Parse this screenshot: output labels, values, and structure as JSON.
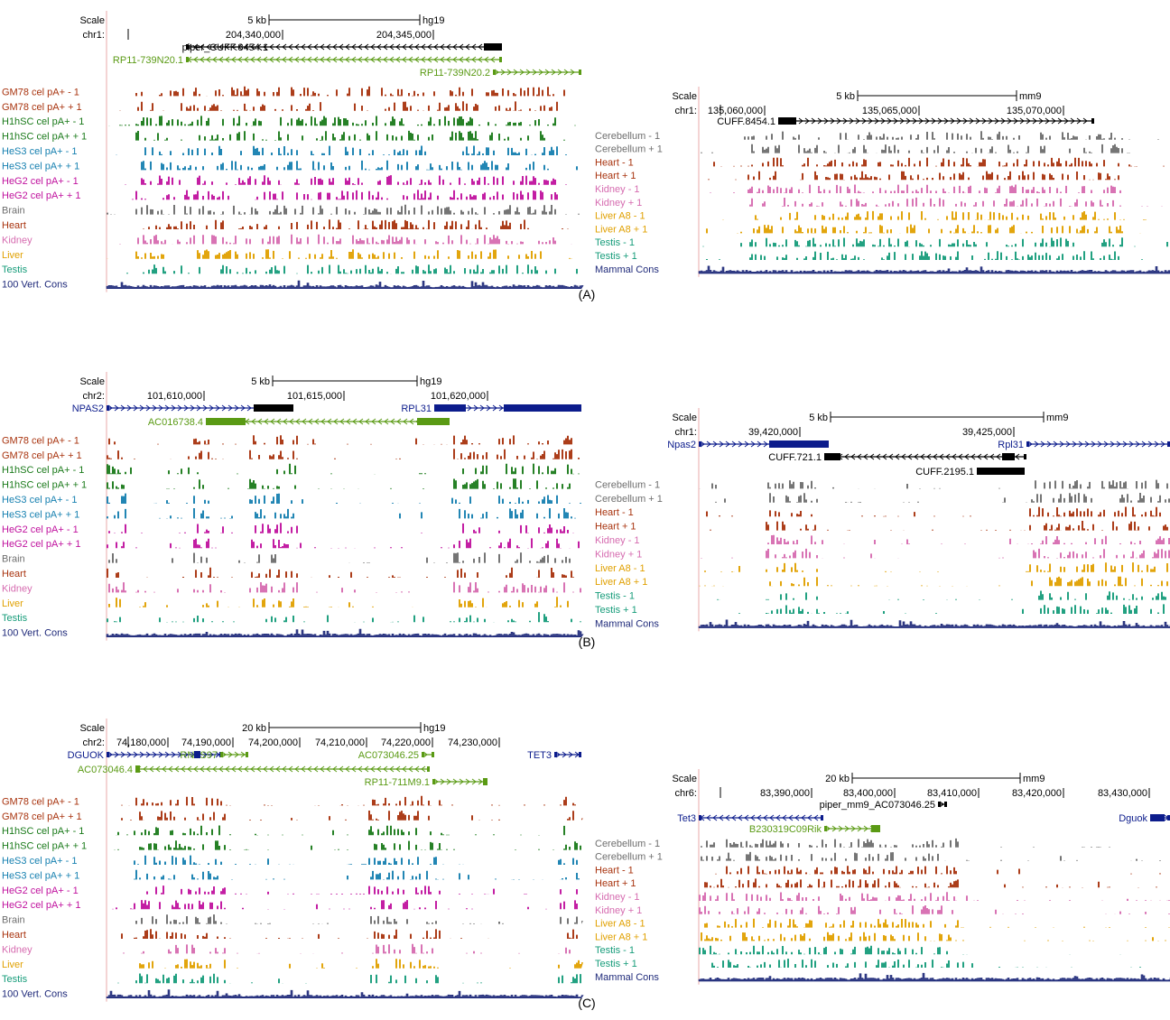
{
  "panels": [
    {
      "caption": "(A)",
      "human": {
        "scale_label": "Scale",
        "chrom_label": "chr1:",
        "scale_bar": "5 kb",
        "assembly": "hg19",
        "ticks": [
          "204,340,000",
          "204,345,000"
        ],
        "genes": [
          {
            "name": "piper_CUFF.8454.1",
            "color": "#000000",
            "dir": "-"
          },
          {
            "name": "RP11-739N20.1",
            "color": "#5a9a14",
            "dir": "-"
          },
          {
            "name": "RP11-739N20.2",
            "color": "#5a9a14",
            "dir": "+"
          }
        ],
        "tracks": [
          {
            "name": "GM78 cel pA+ - 1",
            "color": "#a8330e"
          },
          {
            "name": "GM78 cel pA+ + 1",
            "color": "#a8330e"
          },
          {
            "name": "H1hSC cel pA+ - 1",
            "color": "#1a7a1a"
          },
          {
            "name": "H1hSC cel pA+ + 1",
            "color": "#1a7a1a"
          },
          {
            "name": "HeS3 cel pA+ - 1",
            "color": "#1680b0"
          },
          {
            "name": "HeS3 cel pA+ + 1",
            "color": "#1680b0"
          },
          {
            "name": "HeG2 cel pA+ - 1",
            "color": "#c0129e"
          },
          {
            "name": "HeG2 cel pA+ + 1",
            "color": "#c0129e"
          },
          {
            "name": "Brain",
            "color": "#6e6e6e"
          },
          {
            "name": "Heart",
            "color": "#a8330e"
          },
          {
            "name": "Kidney",
            "color": "#d66cb0"
          },
          {
            "name": "Liver",
            "color": "#e0a000"
          },
          {
            "name": "Testis",
            "color": "#169c7a"
          },
          {
            "name": "100 Vert. Cons",
            "color": "#1f2a7a"
          }
        ]
      },
      "mouse": {
        "scale_label": "Scale",
        "chrom_label": "chr1:",
        "scale_bar": "5 kb",
        "assembly": "mm9",
        "ticks": [
          "135,060,000",
          "135,065,000",
          "135,070,000"
        ],
        "genes": [
          {
            "name": "CUFF.8454.1",
            "color": "#000000",
            "dir": "+"
          }
        ],
        "tracks": [
          {
            "name": "Cerebellum - 1",
            "color": "#6e6e6e"
          },
          {
            "name": "Cerebellum + 1",
            "color": "#6e6e6e"
          },
          {
            "name": "Heart - 1",
            "color": "#a8330e"
          },
          {
            "name": "Heart + 1",
            "color": "#a8330e"
          },
          {
            "name": "Kidney - 1",
            "color": "#d66cb0"
          },
          {
            "name": "Kidney + 1",
            "color": "#d66cb0"
          },
          {
            "name": "Liver A8 - 1",
            "color": "#e0a000"
          },
          {
            "name": "Liver A8 + 1",
            "color": "#e0a000"
          },
          {
            "name": "Testis - 1",
            "color": "#169c7a"
          },
          {
            "name": "Testis + 1",
            "color": "#169c7a"
          },
          {
            "name": "Mammal Cons",
            "color": "#1f2a7a"
          }
        ]
      }
    },
    {
      "caption": "(B)",
      "human": {
        "scale_label": "Scale",
        "chrom_label": "chr2:",
        "scale_bar": "5 kb",
        "assembly": "hg19",
        "ticks": [
          "101,610,000",
          "101,615,000",
          "101,620,000"
        ],
        "genes": [
          {
            "name": "NPAS2",
            "color": "#0c1c8c",
            "dir": "+"
          },
          {
            "name": "RPL31",
            "color": "#0c1c8c",
            "dir": "+"
          },
          {
            "name": "AC016738.4",
            "color": "#5a9a14",
            "dir": "-"
          }
        ],
        "tracks": [
          {
            "name": "GM78 cel pA+ - 1",
            "color": "#a8330e"
          },
          {
            "name": "GM78 cel pA+ + 1",
            "color": "#a8330e"
          },
          {
            "name": "H1hSC cel pA+ - 1",
            "color": "#1a7a1a"
          },
          {
            "name": "H1hSC cel pA+ + 1",
            "color": "#1a7a1a"
          },
          {
            "name": "HeS3 cel pA+ - 1",
            "color": "#1680b0"
          },
          {
            "name": "HeS3 cel pA+ + 1",
            "color": "#1680b0"
          },
          {
            "name": "HeG2 cel pA+ - 1",
            "color": "#c0129e"
          },
          {
            "name": "HeG2 cel pA+ + 1",
            "color": "#c0129e"
          },
          {
            "name": "Brain",
            "color": "#6e6e6e"
          },
          {
            "name": "Heart",
            "color": "#a8330e"
          },
          {
            "name": "Kidney",
            "color": "#d66cb0"
          },
          {
            "name": "Liver",
            "color": "#e0a000"
          },
          {
            "name": "Testis",
            "color": "#169c7a"
          },
          {
            "name": "100 Vert. Cons",
            "color": "#1f2a7a"
          }
        ]
      },
      "mouse": {
        "scale_label": "Scale",
        "chrom_label": "chr1:",
        "scale_bar": "5 kb",
        "assembly": "mm9",
        "ticks": [
          "39,420,000",
          "39,425,000"
        ],
        "genes": [
          {
            "name": "Npas2",
            "color": "#0c1c8c",
            "dir": "+"
          },
          {
            "name": "Rpl31",
            "color": "#0c1c8c",
            "dir": "+"
          },
          {
            "name": "CUFF.721.1",
            "color": "#000000",
            "dir": "-"
          },
          {
            "name": "CUFF.2195.1",
            "color": "#000000",
            "dir": "+"
          }
        ],
        "tracks": [
          {
            "name": "Cerebellum - 1",
            "color": "#6e6e6e"
          },
          {
            "name": "Cerebellum + 1",
            "color": "#6e6e6e"
          },
          {
            "name": "Heart - 1",
            "color": "#a8330e"
          },
          {
            "name": "Heart + 1",
            "color": "#a8330e"
          },
          {
            "name": "Kidney - 1",
            "color": "#d66cb0"
          },
          {
            "name": "Kidney + 1",
            "color": "#d66cb0"
          },
          {
            "name": "Liver A8 - 1",
            "color": "#e0a000"
          },
          {
            "name": "Liver A8 + 1",
            "color": "#e0a000"
          },
          {
            "name": "Testis - 1",
            "color": "#169c7a"
          },
          {
            "name": "Testis + 1",
            "color": "#169c7a"
          },
          {
            "name": "Mammal Cons",
            "color": "#1f2a7a"
          }
        ]
      }
    },
    {
      "caption": "(C)",
      "human": {
        "scale_label": "Scale",
        "chrom_label": "chr2:",
        "scale_bar": "20 kb",
        "assembly": "hg19",
        "ticks": [
          "74,180,000",
          "74,190,000",
          "74,200,000",
          "74,210,000",
          "74,220,000",
          "74,230,000"
        ],
        "genes": [
          {
            "name": "DGUOK",
            "color": "#0c1c8c",
            "dir": "+"
          },
          {
            "name": "RN5S97",
            "color": "#5a9a14",
            "dir": "+"
          },
          {
            "name": "AC073046.25",
            "color": "#5a9a14",
            "dir": "+"
          },
          {
            "name": "TET3",
            "color": "#0c1c8c",
            "dir": "+"
          },
          {
            "name": "AC073046.4",
            "color": "#5a9a14",
            "dir": "-"
          },
          {
            "name": "RP11-711M9.1",
            "color": "#5a9a14",
            "dir": "+"
          }
        ],
        "tracks": [
          {
            "name": "GM78 cel pA+ - 1",
            "color": "#a8330e"
          },
          {
            "name": "GM78 cel pA+ + 1",
            "color": "#a8330e"
          },
          {
            "name": "H1hSC cel pA+ - 1",
            "color": "#1a7a1a"
          },
          {
            "name": "H1hSC cel pA+ + 1",
            "color": "#1a7a1a"
          },
          {
            "name": "HeS3 cel pA+ - 1",
            "color": "#1680b0"
          },
          {
            "name": "HeS3 cel pA+ + 1",
            "color": "#1680b0"
          },
          {
            "name": "HeG2 cel pA+ - 1",
            "color": "#c0129e"
          },
          {
            "name": "HeG2 cel pA+ + 1",
            "color": "#c0129e"
          },
          {
            "name": "Brain",
            "color": "#6e6e6e"
          },
          {
            "name": "Heart",
            "color": "#a8330e"
          },
          {
            "name": "Kidney",
            "color": "#d66cb0"
          },
          {
            "name": "Liver",
            "color": "#e0a000"
          },
          {
            "name": "Testis",
            "color": "#169c7a"
          },
          {
            "name": "100 Vert. Cons",
            "color": "#1f2a7a"
          }
        ]
      },
      "mouse": {
        "scale_label": "Scale",
        "chrom_label": "chr6:",
        "scale_bar": "20 kb",
        "assembly": "mm9",
        "ticks": [
          "83,390,000",
          "83,400,000",
          "83,410,000",
          "83,420,000",
          "83,430,000"
        ],
        "genes": [
          {
            "name": "piper_mm9_AC073046.25",
            "color": "#000000",
            "dir": "+"
          },
          {
            "name": "Tet3",
            "color": "#0c1c8c",
            "dir": "-"
          },
          {
            "name": "Dguok",
            "color": "#0c1c8c",
            "dir": "+"
          },
          {
            "name": "B230319C09Rik",
            "color": "#5a9a14",
            "dir": "+"
          }
        ],
        "tracks": [
          {
            "name": "Cerebellum - 1",
            "color": "#6e6e6e"
          },
          {
            "name": "Cerebellum + 1",
            "color": "#6e6e6e"
          },
          {
            "name": "Heart - 1",
            "color": "#a8330e"
          },
          {
            "name": "Heart + 1",
            "color": "#a8330e"
          },
          {
            "name": "Kidney - 1",
            "color": "#d66cb0"
          },
          {
            "name": "Kidney + 1",
            "color": "#d66cb0"
          },
          {
            "name": "Liver A8 - 1",
            "color": "#e0a000"
          },
          {
            "name": "Liver A8 + 1",
            "color": "#e0a000"
          },
          {
            "name": "Testis - 1",
            "color": "#169c7a"
          },
          {
            "name": "Testis + 1",
            "color": "#169c7a"
          },
          {
            "name": "Mammal Cons",
            "color": "#1f2a7a"
          }
        ]
      }
    }
  ]
}
